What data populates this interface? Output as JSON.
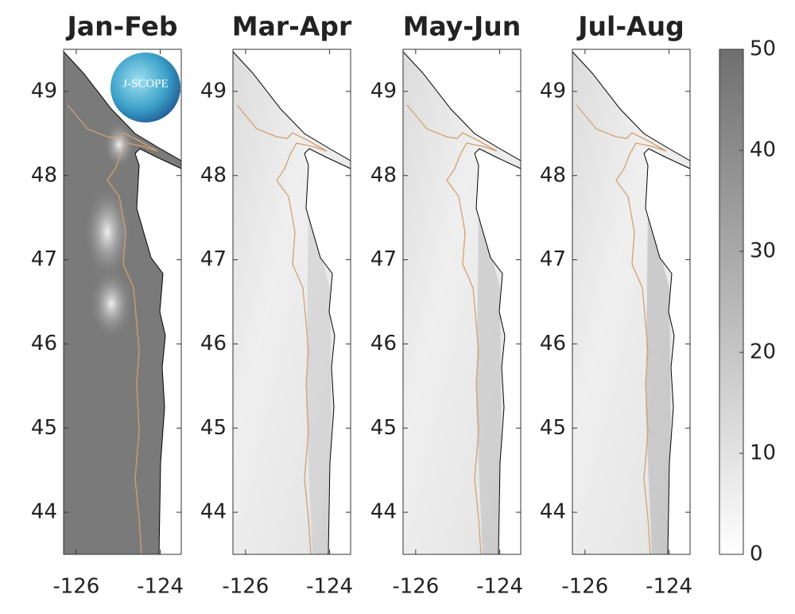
{
  "panels": [
    {
      "title": "Jan-Feb"
    },
    {
      "title": "Mar-Apr"
    },
    {
      "title": "May-Jun"
    },
    {
      "title": "Jul-Aug"
    }
  ],
  "axes": {
    "xlim": [
      -126.3,
      -123.5
    ],
    "ylim": [
      43.5,
      49.5
    ],
    "xticks": [
      -126,
      -124
    ],
    "yticks": [
      44,
      45,
      46,
      47,
      48,
      49
    ]
  },
  "colorbar": {
    "lim": [
      0,
      50
    ],
    "ticks": [
      0,
      10,
      20,
      30,
      40,
      50
    ]
  },
  "logo": "J-SCOPE"
}
